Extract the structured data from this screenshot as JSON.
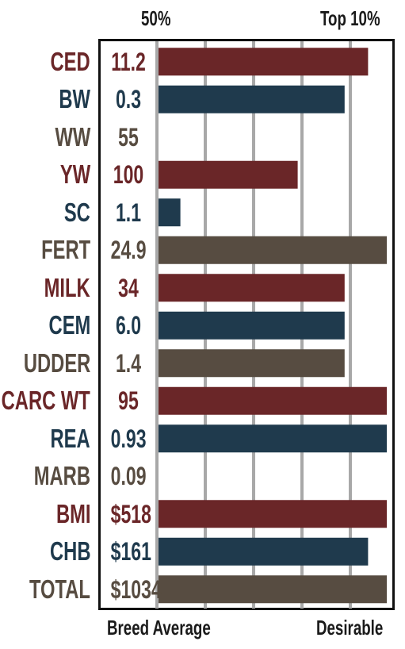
{
  "top_labels": {
    "left": "50%",
    "right": "Top 10%"
  },
  "bottom_labels": {
    "left": "Breed Average",
    "right": "Desirable"
  },
  "colors": {
    "maroon": "#6a2628",
    "navy": "#1f3a4d",
    "brown": "#574c41",
    "grid": "#a8a8a8"
  },
  "chart_data": {
    "type": "bar",
    "orientation": "horizontal",
    "scale": {
      "min": "50%",
      "max": "Top 10%",
      "min_label": "Breed Average",
      "max_label": "Desirable"
    },
    "xlim": [
      0,
      5
    ],
    "gridlines": 4,
    "rows": [
      {
        "trait": "CED",
        "value": "11.2",
        "bar": 4.5,
        "color": "maroon"
      },
      {
        "trait": "BW",
        "value": "0.3",
        "bar": 4.0,
        "color": "navy"
      },
      {
        "trait": "WW",
        "value": "55",
        "bar": 0,
        "color": "brown"
      },
      {
        "trait": "YW",
        "value": "100",
        "bar": 3.0,
        "color": "maroon"
      },
      {
        "trait": "SC",
        "value": "1.1",
        "bar": 0.5,
        "color": "navy"
      },
      {
        "trait": "FERT",
        "value": "24.9",
        "bar": 4.9,
        "color": "brown"
      },
      {
        "trait": "MILK",
        "value": "34",
        "bar": 4.0,
        "color": "maroon"
      },
      {
        "trait": "CEM",
        "value": "6.0",
        "bar": 4.0,
        "color": "navy"
      },
      {
        "trait": "UDDER",
        "value": "1.4",
        "bar": 4.0,
        "color": "brown"
      },
      {
        "trait": "CARC WT",
        "value": "95",
        "bar": 4.9,
        "color": "maroon"
      },
      {
        "trait": "REA",
        "value": "0.93",
        "bar": 4.9,
        "color": "navy"
      },
      {
        "trait": "MARB",
        "value": "0.09",
        "bar": 0,
        "color": "brown"
      },
      {
        "trait": "BMI",
        "value": "$518",
        "bar": 4.9,
        "color": "maroon"
      },
      {
        "trait": "CHB",
        "value": "$161",
        "bar": 4.5,
        "color": "navy"
      },
      {
        "trait": "TOTAL",
        "value": "$1034",
        "bar": 4.9,
        "color": "brown"
      }
    ]
  }
}
